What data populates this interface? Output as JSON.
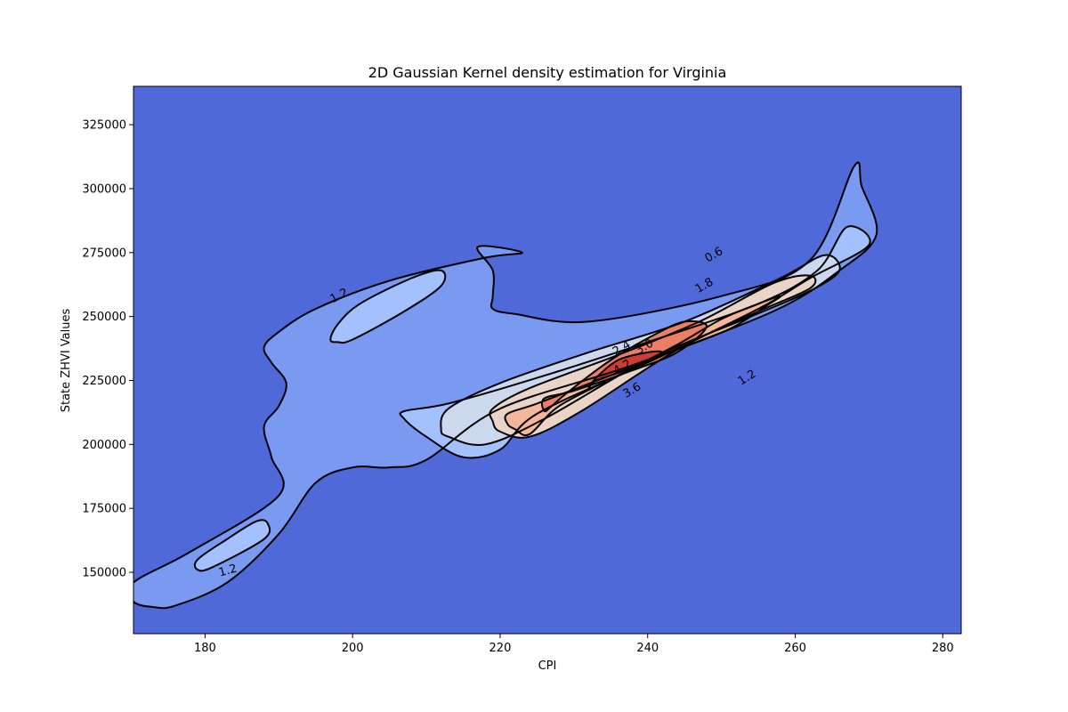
{
  "chart_data": {
    "type": "contour",
    "title": "2D Gaussian Kernel density estimation for Virginia",
    "xlabel": "CPI",
    "ylabel": "State ZHVI Values",
    "xlim": [
      170.3,
      282.5
    ],
    "ylim": [
      126000,
      340000
    ],
    "xticks": [
      180,
      200,
      220,
      240,
      260,
      280
    ],
    "yticks": [
      150000,
      175000,
      200000,
      225000,
      250000,
      275000,
      300000,
      325000
    ],
    "tick_labels_x": [
      "180",
      "200",
      "220",
      "240",
      "260",
      "280"
    ],
    "tick_labels_y": [
      "150000",
      "175000",
      "200000",
      "225000",
      "250000",
      "275000",
      "300000",
      "325000"
    ],
    "colormap": "coolwarm",
    "background_color": "#4f69d9",
    "contour_levels": [
      {
        "level": 0.6,
        "fill": "#7a9af2",
        "regions": [
          [
            [
              173,
              136400
            ],
            [
              170.3,
              138600
            ],
            [
              170.3,
              146000
            ],
            [
              178,
              158000
            ],
            [
              190,
              180000
            ],
            [
              189,
              195000
            ],
            [
              188,
              207000
            ],
            [
              190,
              215000
            ],
            [
              191,
              224000
            ],
            [
              189,
              232000
            ],
            [
              188,
              238000
            ],
            [
              190,
              244000
            ],
            [
              195,
              253000
            ],
            [
              205,
              264000
            ],
            [
              218,
              273000
            ],
            [
              223,
              275000
            ],
            [
              217,
              277300
            ],
            [
              219,
              268000
            ],
            [
              219,
              258000
            ],
            [
              219,
              253000
            ],
            [
              222,
              251000
            ],
            [
              232,
              248000
            ],
            [
              250,
              258000
            ],
            [
              262,
              272000
            ],
            [
              268,
              308800
            ],
            [
              269,
              301000
            ],
            [
              271,
              282000
            ],
            [
              266,
              268000
            ],
            [
              257,
              252000
            ],
            [
              238,
              231000
            ],
            [
              220,
              214000
            ],
            [
              210,
              194000
            ],
            [
              205,
              191000
            ],
            [
              200,
              191000
            ],
            [
              195,
              185000
            ],
            [
              190,
              165000
            ],
            [
              183,
              146000
            ],
            [
              176,
              137000
            ]
          ]
        ]
      },
      {
        "level": 1.2,
        "fill": "#a3c1fe",
        "regions": [
          [
            [
              179,
              151000
            ],
            [
              179,
              155000
            ],
            [
              183,
              163000
            ],
            [
              187,
              170000
            ],
            [
              188.5,
              169000
            ],
            [
              188,
              163000
            ],
            [
              181,
              152000
            ]
          ],
          [
            [
              197,
              241000
            ],
            [
              198,
              247000
            ],
            [
              201,
              255000
            ],
            [
              208,
              265000
            ],
            [
              212,
              268000
            ],
            [
              212,
              262000
            ],
            [
              207,
              252000
            ],
            [
              200,
              241000
            ],
            [
              198,
              240000
            ]
          ],
          [
            [
              215,
              195000
            ],
            [
              210,
              203000
            ],
            [
              207,
              210000
            ],
            [
              207,
              213000
            ],
            [
              213,
              216000
            ],
            [
              225,
              226000
            ],
            [
              240,
              240000
            ],
            [
              255,
              255000
            ],
            [
              263,
              268000
            ],
            [
              267,
              285000
            ],
            [
              270,
              278000
            ],
            [
              262,
              265000
            ],
            [
              255,
              253000
            ],
            [
              240,
              232000
            ],
            [
              225,
              212000
            ],
            [
              220,
              198000
            ]
          ]
        ]
      },
      {
        "level": 1.8,
        "fill": "#cbd8ee",
        "regions": [
          [
            [
              212,
              206000
            ],
            [
              213,
              214000
            ],
            [
              220,
              224000
            ],
            [
              232,
              236000
            ],
            [
              245,
              248000
            ],
            [
              258,
              265000
            ],
            [
              264,
              274000
            ],
            [
              266,
              268000
            ],
            [
              262,
              260000
            ],
            [
              254,
              250000
            ],
            [
              240,
              233000
            ],
            [
              226,
              210000
            ],
            [
              218,
              200000
            ],
            [
              213,
              203000
            ]
          ]
        ]
      },
      {
        "level": 2.4,
        "fill": "#ead4c8",
        "regions": [
          [
            [
              219,
              209000
            ],
            [
              219,
              214000
            ],
            [
              224,
              222000
            ],
            [
              236,
              235000
            ],
            [
              247,
              248000
            ],
            [
              257,
              263000
            ],
            [
              262,
              266000
            ],
            [
              262,
              261000
            ],
            [
              255,
              252000
            ],
            [
              244,
              237000
            ],
            [
              231,
              213000
            ],
            [
              224,
              203000
            ],
            [
              220,
              205000
            ]
          ]
        ]
      },
      {
        "level": 3.0,
        "fill": "#f6b69b",
        "regions": [
          [
            [
              221,
              208000
            ],
            [
              221,
              212000
            ],
            [
              225,
              216000
            ],
            [
              235,
              227000
            ],
            [
              243,
              236000
            ],
            [
              251,
              245000
            ],
            [
              256,
              254000
            ],
            [
              258,
              258000
            ],
            [
              255,
              255000
            ],
            [
              250,
              249000
            ],
            [
              244,
              239000
            ],
            [
              236,
              227000
            ],
            [
              228,
              215000
            ],
            [
              224,
              204000
            ],
            [
              222,
              206000
            ]
          ]
        ]
      },
      {
        "level": 3.6,
        "fill": "#ec7f63",
        "regions": [
          [
            [
              226,
              213000
            ],
            [
              226,
              218000
            ],
            [
              230,
              221000
            ],
            [
              238,
              229000
            ],
            [
              244,
              236000
            ],
            [
              248,
              246000
            ],
            [
              245,
              248000
            ],
            [
              241,
              243000
            ],
            [
              235,
              233000
            ],
            [
              229,
              220000
            ],
            [
              227,
              215000
            ]
          ]
        ]
      },
      {
        "level": 4.2,
        "fill": "#cd3c37",
        "regions": [
          [
            [
              232,
              222000
            ],
            [
              233,
              225000
            ],
            [
              236,
              228000
            ],
            [
              240,
              233000
            ],
            [
              242,
              236000
            ],
            [
              240,
              236000
            ],
            [
              236,
              233000
            ],
            [
              233,
              226000
            ]
          ]
        ]
      }
    ],
    "contour_labels": [
      {
        "text": "0.6",
        "x": 249,
        "y": 274000,
        "rotation": -30
      },
      {
        "text": "1.2",
        "x": 198.2,
        "y": 258000,
        "rotation": -28
      },
      {
        "text": "1.2",
        "x": 183.1,
        "y": 150500,
        "rotation": -16
      },
      {
        "text": "1.2",
        "x": 253.5,
        "y": 226000,
        "rotation": -32
      },
      {
        "text": "1.8",
        "x": 247.7,
        "y": 262000,
        "rotation": -30
      },
      {
        "text": "2.4",
        "x": 236.5,
        "y": 237500,
        "rotation": -30
      },
      {
        "text": "3.0",
        "x": 239.6,
        "y": 238000,
        "rotation": -30
      },
      {
        "text": "3.6",
        "x": 237.9,
        "y": 221000,
        "rotation": -30
      },
      {
        "text": "4.2",
        "x": 236.6,
        "y": 230000,
        "rotation": -30
      }
    ]
  }
}
